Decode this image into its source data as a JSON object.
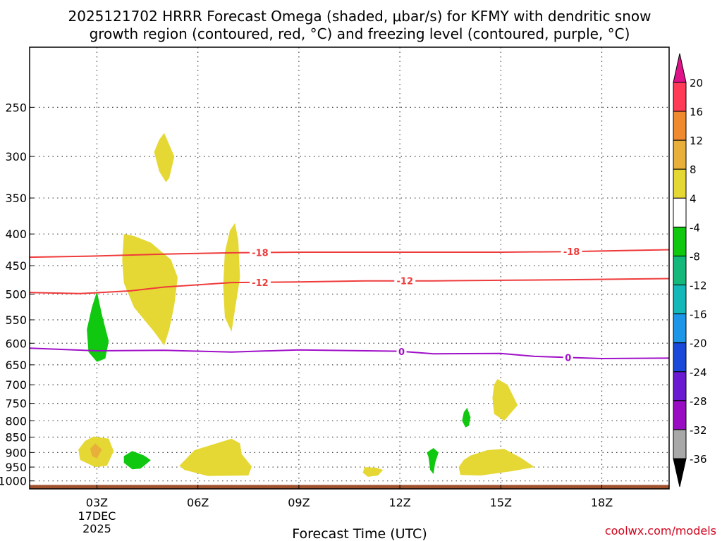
{
  "chart_data": {
    "type": "time-height cross-section (filled + line contours)",
    "title_line1": "2025121702 HRRR Forecast Omega (shaded, μbar/s) for KFMY with dendritic snow",
    "title_line2": "growth region (contoured, red, °C) and freezing level (contoured, purple, °C)",
    "xlabel": "Forecast Time (UTC)",
    "credit": "coolwx.com/models",
    "x_axis": {
      "unit": "forecast hour",
      "range": [
        1.0,
        20.0
      ],
      "ticks": [
        {
          "hour": 3,
          "label": "03Z",
          "sub1": "17DEC",
          "sub2": "2025"
        },
        {
          "hour": 6,
          "label": "06Z"
        },
        {
          "hour": 9,
          "label": "09Z"
        },
        {
          "hour": 12,
          "label": "12Z"
        },
        {
          "hour": 15,
          "label": "15Z"
        },
        {
          "hour": 18,
          "label": "18Z"
        }
      ]
    },
    "y_axis": {
      "unit": "hPa",
      "scale": "log, inverted",
      "range": [
        1030,
        200
      ],
      "ticks": [
        250,
        300,
        350,
        400,
        450,
        500,
        550,
        600,
        650,
        700,
        750,
        800,
        850,
        900,
        950,
        1000
      ]
    },
    "colorbar": {
      "labels": [
        20,
        16,
        12,
        8,
        4,
        -4,
        -8,
        -12,
        -16,
        -20,
        -24,
        -28,
        -32,
        -36
      ],
      "colors": [
        "#ff3b58",
        "#ef8a2e",
        "#e8b03a",
        "#e6d834",
        "#ffffff",
        "#0fc80f",
        "#13b87a",
        "#15b8b8",
        "#1e96e8",
        "#1a48d8",
        "#6a1ad0",
        "#9a0cc4",
        "#a8a8a8"
      ],
      "top_arrow_color": "#e0128a",
      "bottom_arrow_color": "#000000"
    },
    "line_contours": [
      {
        "name": "minus18",
        "label": "-18",
        "color": "#ef3b3b",
        "points": [
          [
            1,
            436
          ],
          [
            3,
            434
          ],
          [
            5,
            431
          ],
          [
            7,
            429
          ],
          [
            9,
            428
          ],
          [
            11,
            428
          ],
          [
            13,
            428
          ],
          [
            15,
            428
          ],
          [
            17,
            427
          ],
          [
            20,
            424
          ]
        ],
        "label_hours": [
          7.85,
          17.1
        ]
      },
      {
        "name": "minus12",
        "label": "-12",
        "color": "#ef3b3b",
        "points": [
          [
            1,
            497
          ],
          [
            2.5,
            499
          ],
          [
            4,
            494
          ],
          [
            5,
            487
          ],
          [
            7,
            479
          ],
          [
            9,
            478
          ],
          [
            11,
            476
          ],
          [
            13,
            476
          ],
          [
            15,
            475
          ],
          [
            17,
            474
          ],
          [
            20,
            472
          ]
        ],
        "label_hours": [
          7.85,
          12.15
        ]
      },
      {
        "name": "zero",
        "label": "0",
        "color": "#a010c8",
        "points": [
          [
            1,
            611
          ],
          [
            3,
            617
          ],
          [
            5,
            616
          ],
          [
            7,
            620
          ],
          [
            9,
            615
          ],
          [
            11,
            617
          ],
          [
            12,
            618
          ],
          [
            13,
            624
          ],
          [
            15,
            623
          ],
          [
            16,
            630
          ],
          [
            18,
            635
          ],
          [
            20,
            634
          ]
        ],
        "label_hours": [
          12.05,
          17.0
        ]
      }
    ],
    "shaded_regions": [
      {
        "name": "up-300",
        "color": "#e6d834",
        "points": [
          [
            5.0,
            275
          ],
          [
            5.3,
            300
          ],
          [
            5.15,
            325
          ],
          [
            5.05,
            330
          ],
          [
            4.85,
            317
          ],
          [
            4.7,
            295
          ],
          [
            4.85,
            282
          ]
        ]
      },
      {
        "name": "up-450",
        "color": "#e6d834",
        "points": [
          [
            3.8,
            400
          ],
          [
            4.1,
            403
          ],
          [
            4.6,
            413
          ],
          [
            5.2,
            440
          ],
          [
            5.4,
            470
          ],
          [
            5.3,
            520
          ],
          [
            5.15,
            570
          ],
          [
            5.0,
            605
          ],
          [
            4.7,
            575
          ],
          [
            4.1,
            525
          ],
          [
            3.8,
            480
          ],
          [
            3.75,
            440
          ]
        ]
      },
      {
        "name": "up-470-07z",
        "color": "#e6d834",
        "points": [
          [
            7.1,
            384
          ],
          [
            7.2,
            410
          ],
          [
            7.25,
            470
          ],
          [
            7.1,
            530
          ],
          [
            7.0,
            575
          ],
          [
            6.8,
            545
          ],
          [
            6.75,
            485
          ],
          [
            6.8,
            428
          ],
          [
            6.95,
            395
          ]
        ]
      },
      {
        "name": "down-575",
        "color": "#0fc80f",
        "points": [
          [
            3.0,
            495
          ],
          [
            3.15,
            540
          ],
          [
            3.35,
            595
          ],
          [
            3.25,
            635
          ],
          [
            3.0,
            643
          ],
          [
            2.75,
            620
          ],
          [
            2.7,
            570
          ],
          [
            2.85,
            525
          ]
        ]
      },
      {
        "name": "up-885",
        "color": "#e6d834",
        "points": [
          [
            2.9,
            848
          ],
          [
            3.35,
            855
          ],
          [
            3.5,
            895
          ],
          [
            3.3,
            945
          ],
          [
            2.95,
            950
          ],
          [
            2.5,
            925
          ],
          [
            2.45,
            890
          ],
          [
            2.65,
            862
          ]
        ]
      },
      {
        "name": "up-900-core",
        "color": "#e8b03a",
        "points": [
          [
            2.95,
            870
          ],
          [
            3.15,
            890
          ],
          [
            3.0,
            920
          ],
          [
            2.85,
            912
          ],
          [
            2.8,
            887
          ]
        ]
      },
      {
        "name": "down-925",
        "color": "#0fc80f",
        "points": [
          [
            4.05,
            895
          ],
          [
            4.4,
            910
          ],
          [
            4.6,
            926
          ],
          [
            4.3,
            955
          ],
          [
            4.05,
            958
          ],
          [
            3.8,
            935
          ],
          [
            3.8,
            912
          ]
        ]
      },
      {
        "name": "up-925-06z",
        "color": "#e6d834",
        "points": [
          [
            5.9,
            892
          ],
          [
            7.0,
            855
          ],
          [
            7.25,
            870
          ],
          [
            7.3,
            905
          ],
          [
            7.6,
            948
          ],
          [
            7.5,
            980
          ],
          [
            6.3,
            982
          ],
          [
            5.6,
            960
          ],
          [
            5.45,
            945
          ]
        ]
      },
      {
        "name": "up-955-11z",
        "color": "#e6d834",
        "points": [
          [
            10.95,
            950
          ],
          [
            11.3,
            952
          ],
          [
            11.5,
            960
          ],
          [
            11.35,
            980
          ],
          [
            11.05,
            985
          ],
          [
            10.9,
            970
          ]
        ]
      },
      {
        "name": "down-800-14z",
        "color": "#0fc80f",
        "points": [
          [
            14.0,
            762
          ],
          [
            14.1,
            790
          ],
          [
            14.05,
            815
          ],
          [
            13.95,
            820
          ],
          [
            13.85,
            800
          ],
          [
            13.9,
            775
          ]
        ]
      },
      {
        "name": "down-910-13z",
        "color": "#0fc80f",
        "points": [
          [
            13.0,
            885
          ],
          [
            13.15,
            900
          ],
          [
            13.05,
            935
          ],
          [
            13.0,
            975
          ],
          [
            12.9,
            960
          ],
          [
            12.85,
            915
          ],
          [
            12.8,
            900
          ]
        ]
      },
      {
        "name": "up-730-15z",
        "color": "#e6d834",
        "points": [
          [
            14.9,
            685
          ],
          [
            15.2,
            700
          ],
          [
            15.5,
            755
          ],
          [
            15.1,
            800
          ],
          [
            14.8,
            780
          ],
          [
            14.75,
            735
          ],
          [
            14.8,
            700
          ]
        ]
      },
      {
        "name": "up-930-15z",
        "color": "#e6d834",
        "points": [
          [
            14.1,
            910
          ],
          [
            14.6,
            892
          ],
          [
            15.1,
            888
          ],
          [
            15.6,
            918
          ],
          [
            16.0,
            950
          ],
          [
            15.3,
            965
          ],
          [
            14.4,
            980
          ],
          [
            13.8,
            978
          ],
          [
            13.75,
            950
          ],
          [
            13.9,
            925
          ]
        ]
      }
    ],
    "terrain": {
      "color": "#a0522d",
      "top_hPa": 1015
    }
  }
}
